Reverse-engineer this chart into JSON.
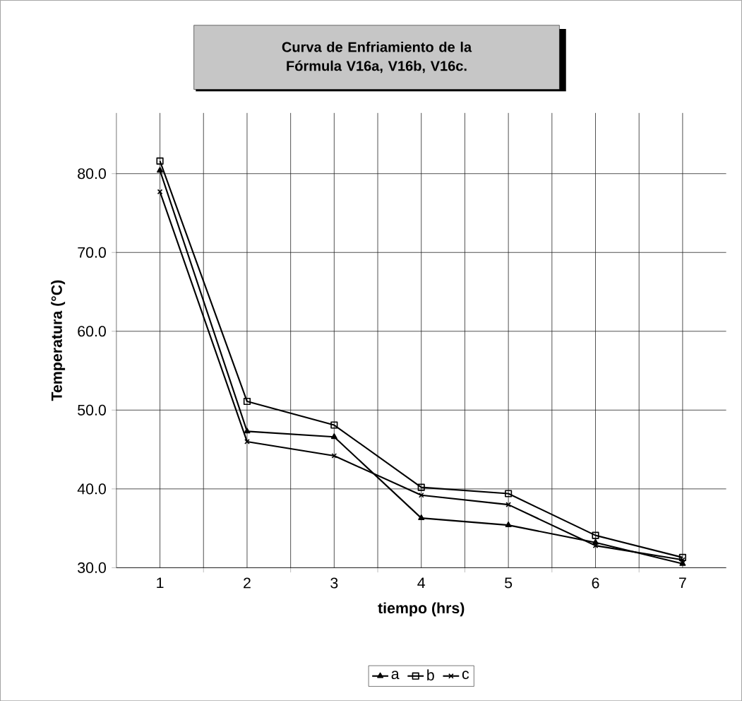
{
  "chart_data": {
    "type": "line",
    "title": "Curva de Enfriamiento de la Fórmula V16a,  V16b,  V16c.",
    "xlabel": "tiempo (hrs)",
    "ylabel": "Temperatura (°C)",
    "categories": [
      "1",
      "2",
      "3",
      "4",
      "5",
      "6",
      "7"
    ],
    "series": [
      {
        "name": "a",
        "color": "#000000",
        "marker": "triangle",
        "values": [
          80.4,
          47.3,
          46.6,
          36.3,
          35.4,
          33.2,
          30.5
        ]
      },
      {
        "name": "b",
        "color": "#000000",
        "marker": "square",
        "values": [
          81.6,
          51.1,
          48.1,
          40.2,
          39.4,
          34.1,
          31.3
        ]
      },
      {
        "name": "c",
        "color": "#000000",
        "marker": "cross",
        "values": [
          77.7,
          46.0,
          44.2,
          39.2,
          38.0,
          32.8,
          31.0
        ]
      }
    ],
    "ylim": [
      30,
      87.7
    ],
    "yticks": [
      {
        "value": 30,
        "label": "30.0"
      },
      {
        "value": 40,
        "label": "40.0"
      },
      {
        "value": 50,
        "label": "50.0"
      },
      {
        "value": 60,
        "label": "60.0"
      },
      {
        "value": 70,
        "label": "70.0"
      },
      {
        "value": 80,
        "label": "80.0"
      }
    ],
    "grid": true,
    "legend": "bottom",
    "line_style": "solid"
  }
}
